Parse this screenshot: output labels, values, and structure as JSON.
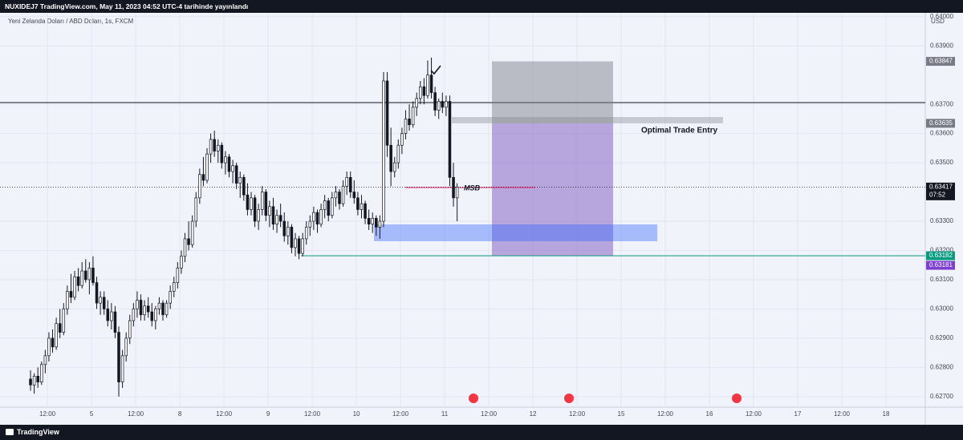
{
  "header": {
    "publisher": "NUXIDEJ7 TradingView.com, May 11, 2023 04:52 UTC-4 tarihinde yayınlandı",
    "brand": "TradingView"
  },
  "chart_data": {
    "type": "candlestick",
    "title": "Yeni Zelanda Doları / ABD Doları, 1s, FXCM",
    "y_axis_label": "USD",
    "xlim": [
      -8.3,
      243.3
    ],
    "ylim": [
      0.62664,
      0.64013
    ],
    "x": [
      0,
      1,
      2,
      3,
      4,
      5,
      6,
      7,
      8,
      9,
      10,
      11,
      12,
      13,
      14,
      15,
      16,
      17,
      18,
      19,
      20,
      21,
      22,
      23,
      24,
      25,
      26,
      27,
      28,
      29,
      30,
      31,
      32,
      33,
      34,
      35,
      36,
      37,
      38,
      39,
      40,
      41,
      42,
      43,
      44,
      45,
      46,
      47,
      48,
      49,
      50,
      51,
      52,
      53,
      54,
      55,
      56,
      57,
      58,
      59,
      60,
      61,
      62,
      63,
      64,
      65,
      66,
      67,
      68,
      69,
      70,
      71,
      72,
      73,
      74,
      75,
      76,
      77,
      78,
      79,
      80,
      81,
      82,
      83,
      84,
      85,
      86,
      87,
      88,
      89,
      90,
      91,
      92,
      93,
      94,
      95,
      96,
      97,
      98,
      99,
      100,
      101,
      102,
      103,
      104,
      105,
      106,
      107,
      108,
      109,
      110,
      111,
      112,
      113,
      114,
      115,
      116
    ],
    "open": [
      0.6276,
      0.6274,
      0.6277,
      0.6275,
      0.6281,
      0.6284,
      0.629,
      0.6287,
      0.6295,
      0.6292,
      0.63,
      0.6306,
      0.6304,
      0.6311,
      0.6308,
      0.6313,
      0.631,
      0.6314,
      0.6309,
      0.6302,
      0.6304,
      0.63,
      0.6296,
      0.6299,
      0.6292,
      0.6275,
      0.6284,
      0.629,
      0.6296,
      0.63,
      0.6303,
      0.6298,
      0.6301,
      0.6299,
      0.6296,
      0.63,
      0.6302,
      0.6298,
      0.6302,
      0.6306,
      0.6309,
      0.6314,
      0.6318,
      0.6324,
      0.6322,
      0.633,
      0.6338,
      0.6346,
      0.6344,
      0.6353,
      0.6358,
      0.6354,
      0.6356,
      0.635,
      0.6352,
      0.6347,
      0.6349,
      0.6343,
      0.6345,
      0.6339,
      0.6334,
      0.6338,
      0.633,
      0.6334,
      0.634,
      0.6332,
      0.6335,
      0.6329,
      0.6332,
      0.633,
      0.6325,
      0.6328,
      0.6321,
      0.6324,
      0.6319,
      0.6324,
      0.6328,
      0.633,
      0.6333,
      0.6329,
      0.6334,
      0.6337,
      0.6332,
      0.6338,
      0.634,
      0.6336,
      0.6342,
      0.6345,
      0.634,
      0.6338,
      0.6334,
      0.6336,
      0.6331,
      0.6329,
      0.6331,
      0.6328,
      0.633,
      0.6378,
      0.6356,
      0.6347,
      0.635,
      0.6356,
      0.636,
      0.6365,
      0.6363,
      0.6369,
      0.6372,
      0.6376,
      0.6373,
      0.638,
      0.6374,
      0.6368,
      0.6371,
      0.6369,
      0.6371,
      0.6345,
      0.6338
    ],
    "high": [
      0.6279,
      0.6278,
      0.628,
      0.6282,
      0.6286,
      0.6292,
      0.6293,
      0.6297,
      0.63,
      0.6302,
      0.6308,
      0.6312,
      0.6313,
      0.6314,
      0.6316,
      0.6317,
      0.6316,
      0.6318,
      0.6311,
      0.6306,
      0.6306,
      0.6303,
      0.6302,
      0.6301,
      0.6294,
      0.6286,
      0.6292,
      0.6298,
      0.6302,
      0.6306,
      0.6305,
      0.6303,
      0.6304,
      0.6302,
      0.6301,
      0.6304,
      0.6303,
      0.6303,
      0.6308,
      0.6311,
      0.6316,
      0.632,
      0.6326,
      0.633,
      0.6332,
      0.634,
      0.6348,
      0.6352,
      0.6355,
      0.636,
      0.6361,
      0.6358,
      0.6357,
      0.6354,
      0.6353,
      0.6351,
      0.635,
      0.6347,
      0.6346,
      0.6343,
      0.634,
      0.6339,
      0.6336,
      0.6342,
      0.6341,
      0.6337,
      0.6338,
      0.6334,
      0.6336,
      0.6333,
      0.633,
      0.6329,
      0.6326,
      0.6325,
      0.6326,
      0.633,
      0.6332,
      0.6335,
      0.6334,
      0.6336,
      0.6339,
      0.6338,
      0.634,
      0.6342,
      0.6341,
      0.6344,
      0.6347,
      0.6347,
      0.6344,
      0.634,
      0.6339,
      0.6337,
      0.6334,
      0.6333,
      0.6332,
      0.6332,
      0.6381,
      0.6381,
      0.6362,
      0.6352,
      0.6358,
      0.6362,
      0.6368,
      0.637,
      0.6371,
      0.6374,
      0.6378,
      0.6379,
      0.6385,
      0.6386,
      0.6376,
      0.6372,
      0.6374,
      0.6373,
      0.6373,
      0.635,
      0.6343
    ],
    "low": [
      0.6272,
      0.6271,
      0.6273,
      0.6274,
      0.6278,
      0.6282,
      0.6285,
      0.6286,
      0.629,
      0.6291,
      0.6298,
      0.6302,
      0.6303,
      0.6306,
      0.6307,
      0.6309,
      0.6305,
      0.6308,
      0.63,
      0.6298,
      0.6298,
      0.6294,
      0.6293,
      0.629,
      0.627,
      0.6273,
      0.6282,
      0.6288,
      0.6294,
      0.6297,
      0.6296,
      0.6296,
      0.6297,
      0.6294,
      0.6293,
      0.6298,
      0.6296,
      0.6297,
      0.63,
      0.6304,
      0.6307,
      0.6312,
      0.6316,
      0.632,
      0.6321,
      0.6328,
      0.6336,
      0.6342,
      0.6343,
      0.635,
      0.6352,
      0.635,
      0.6348,
      0.6346,
      0.6345,
      0.6343,
      0.6341,
      0.6338,
      0.6337,
      0.6332,
      0.6332,
      0.6328,
      0.6327,
      0.6332,
      0.633,
      0.6328,
      0.6327,
      0.6326,
      0.6328,
      0.6323,
      0.6322,
      0.6319,
      0.6318,
      0.6317,
      0.6318,
      0.6322,
      0.6325,
      0.6327,
      0.6326,
      0.6328,
      0.6331,
      0.633,
      0.6331,
      0.6335,
      0.6334,
      0.6335,
      0.6339,
      0.6338,
      0.6336,
      0.6332,
      0.6331,
      0.6329,
      0.6327,
      0.6326,
      0.6325,
      0.6324,
      0.6328,
      0.6352,
      0.6342,
      0.6345,
      0.6348,
      0.6353,
      0.6358,
      0.6361,
      0.6362,
      0.6366,
      0.637,
      0.637,
      0.6372,
      0.6372,
      0.6366,
      0.6365,
      0.6367,
      0.6366,
      0.6342,
      0.6335,
      0.633
    ],
    "close": [
      0.6274,
      0.6277,
      0.6275,
      0.6281,
      0.6284,
      0.629,
      0.6287,
      0.6295,
      0.6292,
      0.63,
      0.6306,
      0.6304,
      0.6311,
      0.6308,
      0.6313,
      0.631,
      0.6314,
      0.6309,
      0.6302,
      0.6304,
      0.63,
      0.6296,
      0.6299,
      0.6292,
      0.6275,
      0.6284,
      0.629,
      0.6296,
      0.63,
      0.6303,
      0.6298,
      0.6301,
      0.6299,
      0.6296,
      0.63,
      0.6302,
      0.6298,
      0.6302,
      0.6306,
      0.6309,
      0.6314,
      0.6318,
      0.6324,
      0.6322,
      0.633,
      0.6338,
      0.6346,
      0.6344,
      0.6353,
      0.6358,
      0.6354,
      0.6356,
      0.635,
      0.6352,
      0.6347,
      0.6349,
      0.6343,
      0.6345,
      0.6339,
      0.6334,
      0.6338,
      0.633,
      0.6334,
      0.634,
      0.6332,
      0.6335,
      0.6329,
      0.6332,
      0.633,
      0.6325,
      0.6328,
      0.6321,
      0.6324,
      0.6319,
      0.6324,
      0.6328,
      0.633,
      0.6333,
      0.6329,
      0.6334,
      0.6337,
      0.6332,
      0.6338,
      0.634,
      0.6336,
      0.6342,
      0.6345,
      0.634,
      0.6338,
      0.6334,
      0.6336,
      0.6331,
      0.6329,
      0.6331,
      0.6328,
      0.633,
      0.6378,
      0.6356,
      0.6347,
      0.635,
      0.6356,
      0.636,
      0.6365,
      0.6363,
      0.6369,
      0.6372,
      0.6376,
      0.6373,
      0.638,
      0.6374,
      0.6368,
      0.6371,
      0.6369,
      0.6371,
      0.6345,
      0.6338,
      0.63417
    ],
    "up_color": "#ffffff",
    "down_color": "#131722",
    "wick_color": "#131722",
    "grid": true,
    "yticks": [
      {
        "value": 0.64,
        "label": "0.64000"
      },
      {
        "value": 0.639,
        "label": "0.63900"
      },
      {
        "value": 0.637,
        "label": "0.63700"
      },
      {
        "value": 0.636,
        "label": "0.63600"
      },
      {
        "value": 0.635,
        "label": "0.63500"
      },
      {
        "value": 0.633,
        "label": "0.63300"
      },
      {
        "value": 0.632,
        "label": "0.63200"
      },
      {
        "value": 0.631,
        "label": "0.63100"
      },
      {
        "value": 0.63,
        "label": "0.63000"
      },
      {
        "value": 0.629,
        "label": "0.62900"
      },
      {
        "value": 0.628,
        "label": "0.62800"
      },
      {
        "value": 0.627,
        "label": "0.62700"
      }
    ],
    "xticks": [
      {
        "value": 4.6,
        "label": "12:00"
      },
      {
        "value": 16.6,
        "label": "5"
      },
      {
        "value": 28.6,
        "label": "12:00"
      },
      {
        "value": 40.6,
        "label": "8"
      },
      {
        "value": 52.6,
        "label": "12:00"
      },
      {
        "value": 64.6,
        "label": "9"
      },
      {
        "value": 76.6,
        "label": "12:00"
      },
      {
        "value": 88.6,
        "label": "10"
      },
      {
        "value": 100.6,
        "label": "12:00"
      },
      {
        "value": 112.6,
        "label": "11"
      },
      {
        "value": 124.6,
        "label": "12:00"
      },
      {
        "value": 136.6,
        "label": "12"
      },
      {
        "value": 148.6,
        "label": "12:00"
      },
      {
        "value": 160.6,
        "label": "15"
      },
      {
        "value": 172.6,
        "label": "12:00"
      },
      {
        "value": 184.6,
        "label": "16"
      },
      {
        "value": 196.6,
        "label": "12:00"
      },
      {
        "value": 208.6,
        "label": "17"
      },
      {
        "value": 220.6,
        "label": "12:00"
      },
      {
        "value": 232.6,
        "label": "18"
      }
    ],
    "price_labels": [
      {
        "value": 0.63847,
        "label": "0.63847",
        "color": "#787b86"
      },
      {
        "value": 0.63635,
        "label": "0.63635",
        "color": "#787b86"
      },
      {
        "value": 0.63417,
        "label": "0.63417",
        "color": "#131722"
      },
      {
        "value": 0.63182,
        "label": "0.63182",
        "color": "#089981"
      },
      {
        "value": 0.63181,
        "label": "0.63181",
        "color": "#7e3fd1"
      }
    ],
    "countdown": "07:52",
    "annotations": {
      "ote": "Optimal Trade Entry",
      "msb": "MSB"
    }
  }
}
